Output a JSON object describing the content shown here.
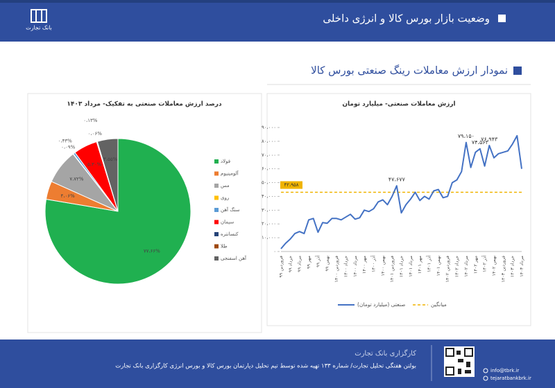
{
  "header": {
    "title": "وضعیت بازار بورس کالا و انرژی داخلی",
    "logo": "بانک تجارت"
  },
  "section_title": "نمودار ارزش معاملات رینگ صنعتی بورس کالا",
  "chart_data": [
    {
      "type": "line",
      "title": "ارزش معاملات صنعتی- میلیارد تومان",
      "categories": [
        "فروردین ۹۹",
        null,
        "خرداد ۹۹",
        null,
        "مرداد ۹۹",
        null,
        "مهر ۹۹",
        null,
        "آذر ۹۹",
        null,
        "بهمن ۹۹",
        null,
        "فروردین ۱۴۰۰",
        null,
        "خرداد ۱۴۰۰",
        null,
        "مرداد ۱۴۰۰",
        null,
        "مهر ۱۴۰۰",
        null,
        "آذر ۱۴۰۰",
        null,
        "بهمن ۱۴۰۰",
        null,
        "فروردین ۱۴۰۱",
        null,
        "خرداد ۱۴۰۱",
        null,
        "مرداد ۱۴۰۱",
        null,
        "مهر ۱۴۰۱",
        null,
        "آذر ۱۴۰۱",
        null,
        "بهمن ۱۴۰۱",
        null,
        "فروردین ۱۴۰۲",
        null,
        "خرداد ۱۴۰۲",
        null,
        "مرداد ۱۴۰۲",
        null,
        "مهر ۱۴۰۲",
        null,
        "آذر ۱۴۰۲",
        null,
        "بهمن ۱۴۰۲",
        null,
        "فروردین ۱۴۰۳",
        null,
        "خرداد ۱۴۰۳",
        null,
        "مرداد ۱۴۰۳"
      ],
      "series": [
        {
          "name": "صنعتی (میلیارد تومان)",
          "color": "#4472c4",
          "values": [
            2000,
            6000,
            9000,
            13000,
            14500,
            13000,
            23000,
            24000,
            14000,
            21000,
            20500,
            24000,
            24000,
            23000,
            25000,
            27000,
            23500,
            24500,
            30000,
            29000,
            31000,
            36000,
            37500,
            34000,
            40000,
            47677,
            28000,
            34000,
            38000,
            43000,
            37000,
            40000,
            38000,
            44000,
            45000,
            39000,
            40000,
            50000,
            52000,
            58000,
            79150,
            61000,
            72000,
            74563,
            62000,
            76943,
            68000,
            71000,
            72000,
            73000,
            78000,
            84000,
            60000
          ],
          "value_labels": [
            null,
            null,
            null,
            null,
            null,
            null,
            null,
            null,
            null,
            null,
            null,
            null,
            null,
            null,
            null,
            null,
            null,
            null,
            null,
            null,
            null,
            null,
            null,
            null,
            null,
            "۴۷،۶۷۷",
            null,
            null,
            null,
            null,
            null,
            null,
            null,
            null,
            null,
            null,
            null,
            null,
            null,
            null,
            "۷۹،۱۵۰",
            null,
            null,
            "۷۴،۵۶۳",
            null,
            "۷۶،۹۴۳",
            null,
            null,
            null,
            null,
            null,
            null,
            null
          ]
        }
      ],
      "average": {
        "name": "میانگین",
        "value": 42958,
        "label": "۴۲،۹۵۸",
        "color": "#f0b400"
      },
      "ylim": [
        0,
        90000
      ],
      "yticks": [
        {
          "value": 0,
          "label": "۰"
        },
        {
          "value": 10000,
          "label": "۱۰،۰۰۰"
        },
        {
          "value": 20000,
          "label": "۲۰،۰۰۰"
        },
        {
          "value": 30000,
          "label": "۳۰،۰۰۰"
        },
        {
          "value": 40000,
          "label": "۴۰،۰۰۰"
        },
        {
          "value": 50000,
          "label": "۵۰،۰۰۰"
        },
        {
          "value": 60000,
          "label": "۶۰،۰۰۰"
        },
        {
          "value": 70000,
          "label": "۷۰،۰۰۰"
        },
        {
          "value": 80000,
          "label": "۸۰،۰۰۰"
        },
        {
          "value": 90000,
          "label": "۹۰،۰۰۰"
        }
      ],
      "grid": false
    },
    {
      "type": "pie",
      "title": "درصد ارزش معاملات صنعتی به تفکیک- مرداد ۱۴۰۳",
      "categories": [
        "فولاد",
        "آلومینیوم",
        "مس",
        "روی",
        "سنگ آهن",
        "سیمان",
        "کنسانتره",
        "طلا",
        "آهن اسفنجی"
      ],
      "values": [
        77.66,
        4.06,
        7.72,
        0.09,
        0.43,
        5.3,
        0.13,
        0.06,
        4.55
      ],
      "value_labels": [
        "۷۷،۶۶%",
        "۴،۰۶%",
        "۷،۷۲%",
        "۰،۰۹%",
        "۰،۴۳%",
        "۵،۳۰%",
        "۰،۱۳%",
        "۰،۰۶%",
        "۴،۵۵%"
      ],
      "colors": [
        "#20b050",
        "#ed7d31",
        "#a5a5a5",
        "#ffc000",
        "#5b9bd5",
        "#ff0000",
        "#264478",
        "#9e480e",
        "#636363"
      ]
    }
  ],
  "footer": {
    "company": "کارگزاری بانک تجارت",
    "bulletin": "بولتن هفتگی تحلیل تجارت/ شماره ۱۳۳ تهیه شده توسط تیم تحلیل دپارتمان بورس کالا و بورس انرژی کارگزاری بانک تجارت",
    "email": "info@tbrk.ir",
    "website": "tejaratbankbrk.ir"
  }
}
